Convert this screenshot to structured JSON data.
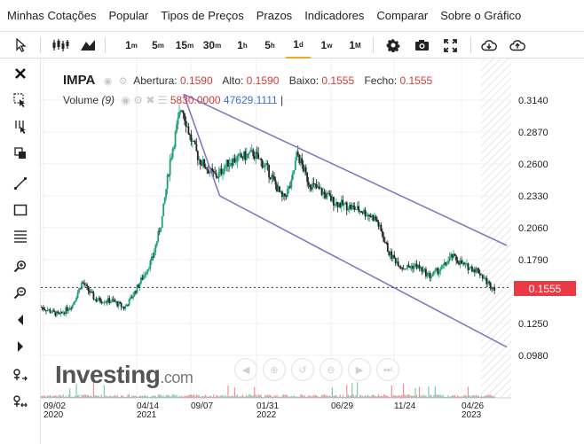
{
  "menu": [
    "Minhas Cotações",
    "Popular",
    "Tipos de Preços",
    "Prazos",
    "Indicadores",
    "Comparar",
    "Sobre o Gráfico"
  ],
  "timeframes": [
    {
      "num": "1",
      "unit": "m"
    },
    {
      "num": "5",
      "unit": "m"
    },
    {
      "num": "15",
      "unit": "m"
    },
    {
      "num": "30",
      "unit": "m"
    },
    {
      "num": "1",
      "unit": "h"
    },
    {
      "num": "5",
      "unit": "h"
    },
    {
      "num": "1",
      "unit": "d"
    },
    {
      "num": "1",
      "unit": "w"
    },
    {
      "num": "1",
      "unit": "M"
    }
  ],
  "active_timeframe": "1d",
  "legend": {
    "symbol": "IMPA",
    "open_label": "Abertura:",
    "open": "0.1590",
    "high_label": "Alto:",
    "high": "0.1590",
    "low_label": "Baixo:",
    "low": "0.1555",
    "close_label": "Fecho:",
    "close": "0.1555"
  },
  "volume": {
    "label": "Volume",
    "period": "(9)",
    "v1": "5830.0000",
    "v2": "47629.1111",
    "cursor": "|"
  },
  "current_price": "0.1555",
  "logo": {
    "brand": "Investing",
    "domain": ".com"
  },
  "colors": {
    "up": "#1a9f78",
    "down": "#222222",
    "channel": "#7f7ac4",
    "badge": "#ea3943"
  },
  "chart_data": {
    "type": "candlestick",
    "y_ticks": [
      "0.3140",
      "0.2870",
      "0.2600",
      "0.2330",
      "0.2060",
      "0.1790",
      "0.1520",
      "0.1250",
      "0.0980"
    ],
    "ylim": [
      0.098,
      0.314
    ],
    "x_ticks": [
      {
        "label": "09/02",
        "year": "2020"
      },
      {
        "label": "04/14",
        "year": "2021"
      },
      {
        "label": "09/07",
        "year": ""
      },
      {
        "label": "01/31",
        "year": "2022"
      },
      {
        "label": "06/29",
        "year": ""
      },
      {
        "label": "11/24",
        "year": ""
      },
      {
        "label": "04/26",
        "year": "2023"
      }
    ],
    "xlim": [
      "2020-07-30",
      "2023-07-05"
    ],
    "price_path": [
      [
        "2020-07-30",
        0.139
      ],
      [
        "2020-09-10",
        0.132
      ],
      [
        "2020-10-10",
        0.141
      ],
      [
        "2020-11-01",
        0.16
      ],
      [
        "2020-12-01",
        0.145
      ],
      [
        "2021-01-10",
        0.144
      ],
      [
        "2021-02-05",
        0.138
      ],
      [
        "2021-02-20",
        0.146
      ],
      [
        "2021-03-10",
        0.158
      ],
      [
        "2021-04-10",
        0.18
      ],
      [
        "2021-05-01",
        0.212
      ],
      [
        "2021-05-20",
        0.263
      ],
      [
        "2021-06-05",
        0.292
      ],
      [
        "2021-06-15",
        0.31
      ],
      [
        "2021-07-05",
        0.282
      ],
      [
        "2021-07-25",
        0.264
      ],
      [
        "2021-08-25",
        0.251
      ],
      [
        "2021-09-05",
        0.25
      ],
      [
        "2021-10-01",
        0.262
      ],
      [
        "2021-11-01",
        0.266
      ],
      [
        "2021-11-25",
        0.269
      ],
      [
        "2021-12-25",
        0.257
      ],
      [
        "2022-01-10",
        0.246
      ],
      [
        "2022-01-31",
        0.23
      ],
      [
        "2022-02-20",
        0.243
      ],
      [
        "2022-03-05",
        0.269
      ],
      [
        "2022-04-01",
        0.244
      ],
      [
        "2022-05-01",
        0.236
      ],
      [
        "2022-06-01",
        0.227
      ],
      [
        "2022-07-01",
        0.224
      ],
      [
        "2022-08-01",
        0.22
      ],
      [
        "2022-09-01",
        0.213
      ],
      [
        "2022-10-01",
        0.184
      ],
      [
        "2022-11-01",
        0.172
      ],
      [
        "2022-12-01",
        0.174
      ],
      [
        "2023-01-01",
        0.165
      ],
      [
        "2023-02-01",
        0.173
      ],
      [
        "2023-02-20",
        0.182
      ],
      [
        "2023-03-20",
        0.174
      ],
      [
        "2023-04-20",
        0.17
      ],
      [
        "2023-05-15",
        0.158
      ],
      [
        "2023-05-28",
        0.1555
      ]
    ],
    "last_close": 0.1555,
    "channel": {
      "upper": [
        [
          "2021-06-20",
          0.319
        ],
        [
          "2023-06-25",
          0.191
        ]
      ],
      "lower": [
        [
          "2021-09-10",
          0.233
        ],
        [
          "2023-06-25",
          0.105
        ]
      ]
    },
    "grid": true,
    "volume_panel": true
  }
}
